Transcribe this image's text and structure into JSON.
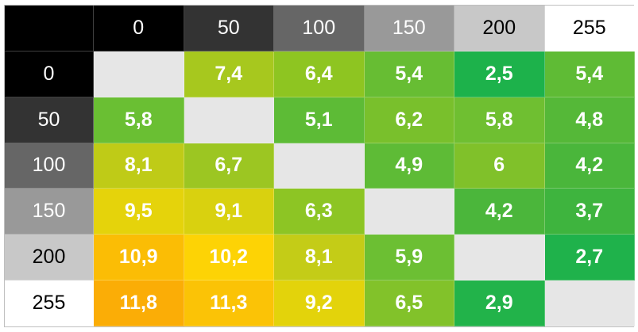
{
  "chart_data": {
    "type": "heatmap",
    "x_labels": [
      "0",
      "50",
      "100",
      "150",
      "200",
      "255"
    ],
    "y_labels": [
      "0",
      "50",
      "100",
      "150",
      "200",
      "255"
    ],
    "values": [
      [
        null,
        "7,4",
        "6,4",
        "5,4",
        "2,5",
        "5,4"
      ],
      [
        "5,8",
        null,
        "5,1",
        "6,2",
        "5,8",
        "4,8"
      ],
      [
        "8,1",
        "6,7",
        null,
        "4,9",
        "6",
        "4,2"
      ],
      [
        "9,5",
        "9,1",
        "6,3",
        null,
        "4,2",
        "3,7"
      ],
      [
        "10,9",
        "10,2",
        "8,1",
        "5,9",
        null,
        "2,7"
      ],
      [
        "11,8",
        "11,3",
        "9,2",
        "6,5",
        "2,9",
        null
      ]
    ],
    "header_backgrounds": [
      "#000000",
      "#333333",
      "#666666",
      "#999999",
      "#c8c8c8",
      "#ffffff"
    ],
    "header_text_colors": [
      "#ffffff",
      "#ffffff",
      "#ffffff",
      "#ffffff",
      "#000000",
      "#000000"
    ],
    "cell_colors": [
      [
        null,
        "#a7c81e",
        "#8ec521",
        "#67bd33",
        "#1db24b",
        "#5fbb35"
      ],
      [
        "#6abf33",
        null,
        "#5dbb36",
        "#79c02c",
        "#6fbf31",
        "#55b838"
      ],
      [
        "#bfcb17",
        "#9cc622",
        null,
        "#5ebb36",
        "#80c12a",
        "#4ab63b"
      ],
      [
        "#e5d30b",
        "#d9d10f",
        "#8dc524",
        null,
        "#4bb63b",
        "#3eb43e"
      ],
      [
        "#fbbd05",
        "#fdd305",
        "#c4cc17",
        "#6cbf33",
        null,
        "#1fb24b"
      ],
      [
        "#fbad06",
        "#fbc306",
        "#e3d30b",
        "#82c22a",
        "#22b34a",
        null
      ]
    ],
    "diagonal_color": "#e6e6e6",
    "corner_color": "#000000"
  }
}
